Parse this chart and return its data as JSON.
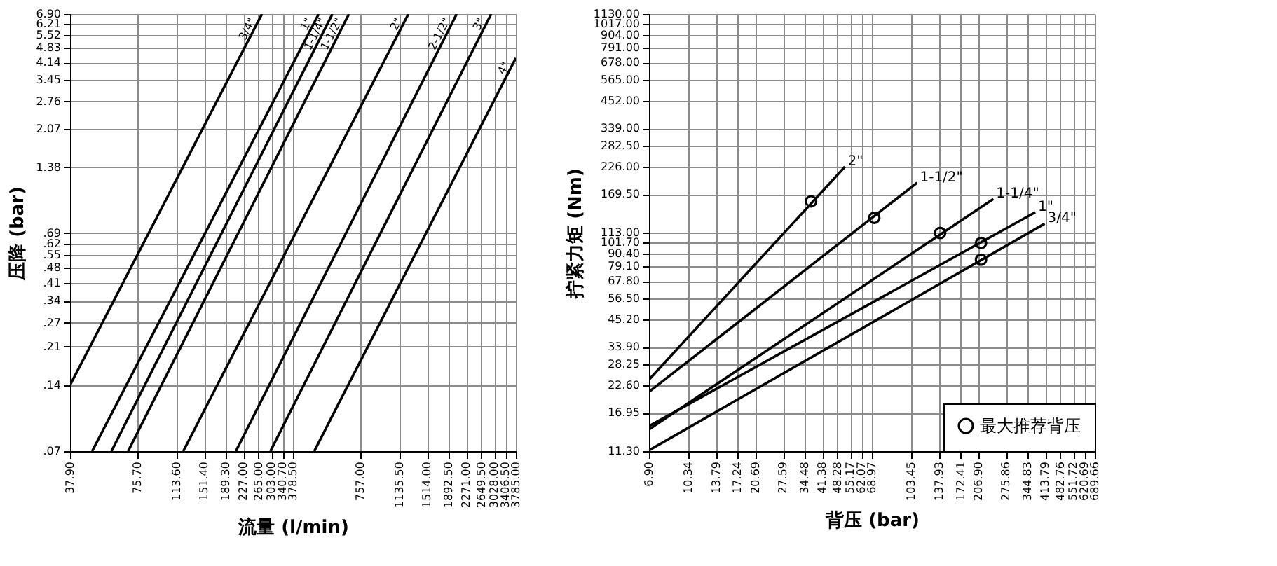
{
  "chart_data": [
    {
      "type": "line",
      "xlabel": "流量 (l/min)",
      "ylabel": "压降 (bar)",
      "log": "xy",
      "grid": true,
      "line_style": "solid",
      "xlim": [
        37.9,
        3785
      ],
      "ylim": [
        0.07,
        6.9
      ],
      "xticks": [
        {
          "value": 37.9,
          "label": "37.90"
        },
        {
          "value": 75.7,
          "label": "75.70"
        },
        {
          "value": 113.6,
          "label": "113.60"
        },
        {
          "value": 151.4,
          "label": "151.40"
        },
        {
          "value": 189.3,
          "label": "189.30"
        },
        {
          "value": 227,
          "label": "227.00"
        },
        {
          "value": 265,
          "label": "265.00"
        },
        {
          "value": 303,
          "label": "303.00"
        },
        {
          "value": 340.7,
          "label": "340.70"
        },
        {
          "value": 378.5,
          "label": "378.50"
        },
        {
          "value": 757,
          "label": "757.00"
        },
        {
          "value": 1135.5,
          "label": "1135.50"
        },
        {
          "value": 1514,
          "label": "1514.00"
        },
        {
          "value": 1892.5,
          "label": "1892.50"
        },
        {
          "value": 2271,
          "label": "2271.00"
        },
        {
          "value": 2649.5,
          "label": "2649.50"
        },
        {
          "value": 3028,
          "label": "3028.00"
        },
        {
          "value": 3406.5,
          "label": "3406.50"
        },
        {
          "value": 3785,
          "label": "3785.00"
        }
      ],
      "yticks": [
        {
          "value": 0.07,
          "label": ".07"
        },
        {
          "value": 0.14,
          "label": ".14"
        },
        {
          "value": 0.21,
          "label": ".21"
        },
        {
          "value": 0.27,
          "label": ".27"
        },
        {
          "value": 0.34,
          "label": ".34"
        },
        {
          "value": 0.41,
          "label": ".41"
        },
        {
          "value": 0.48,
          "label": ".48"
        },
        {
          "value": 0.55,
          "label": ".55"
        },
        {
          "value": 0.62,
          "label": ".62"
        },
        {
          "value": 0.69,
          "label": ".69"
        },
        {
          "value": 1.38,
          "label": "1.38"
        },
        {
          "value": 2.07,
          "label": "2.07"
        },
        {
          "value": 2.76,
          "label": "2.76"
        },
        {
          "value": 3.45,
          "label": "3.45"
        },
        {
          "value": 4.14,
          "label": "4.14"
        },
        {
          "value": 4.83,
          "label": "4.83"
        },
        {
          "value": 5.52,
          "label": "5.52"
        },
        {
          "value": 6.21,
          "label": "6.21"
        },
        {
          "value": 6.9,
          "label": "6.90"
        }
      ],
      "series": [
        {
          "name": "3/4\"",
          "color": "#000000",
          "x": [
            37.9,
            275
          ],
          "values": [
            0.14,
            6.9
          ]
        },
        {
          "name": "1\"",
          "color": "#000000",
          "x": [
            47.6,
            494
          ],
          "values": [
            0.07,
            6.9
          ]
        },
        {
          "name": "1-1/4\"",
          "color": "#000000",
          "x": [
            58.1,
            569
          ],
          "values": [
            0.07,
            6.9
          ]
        },
        {
          "name": "1-1/2\"",
          "color": "#000000",
          "x": [
            69.0,
            675
          ],
          "values": [
            0.07,
            6.9
          ]
        },
        {
          "name": "2\"",
          "color": "#000000",
          "x": [
            122,
            1247
          ],
          "values": [
            0.07,
            6.9
          ]
        },
        {
          "name": "2-1/2\"",
          "color": "#000000",
          "x": [
            210,
            2054
          ],
          "values": [
            0.07,
            6.9
          ]
        },
        {
          "name": "3\"",
          "color": "#000000",
          "x": [
            300,
            2933
          ],
          "values": [
            0.07,
            6.9
          ]
        },
        {
          "name": "4\"",
          "color": "#000000",
          "x": [
            472,
            3785
          ],
          "values": [
            0.07,
            4.35
          ]
        }
      ]
    },
    {
      "type": "line",
      "xlabel": "背压 (bar)",
      "ylabel": "拧紧力矩 (Nm)",
      "log": "xy",
      "grid": true,
      "line_style": "solid",
      "legend": "bottom right",
      "xlim": [
        6.9,
        689.66
      ],
      "ylim": [
        11.3,
        1130
      ],
      "xticks": [
        {
          "value": 6.9,
          "label": "6.90"
        },
        {
          "value": 10.34,
          "label": "10.34"
        },
        {
          "value": 13.79,
          "label": "13.79"
        },
        {
          "value": 17.24,
          "label": "17.24"
        },
        {
          "value": 20.69,
          "label": "20.69"
        },
        {
          "value": 27.59,
          "label": "27.59"
        },
        {
          "value": 34.48,
          "label": "34.48"
        },
        {
          "value": 41.38,
          "label": "41.38"
        },
        {
          "value": 48.28,
          "label": "48.28"
        },
        {
          "value": 55.17,
          "label": "55.17"
        },
        {
          "value": 62.07,
          "label": "62.07"
        },
        {
          "value": 68.97,
          "label": "68.97"
        },
        {
          "value": 103.45,
          "label": "103.45"
        },
        {
          "value": 137.93,
          "label": "137.93"
        },
        {
          "value": 172.41,
          "label": "172.41"
        },
        {
          "value": 206.9,
          "label": "206.90"
        },
        {
          "value": 275.86,
          "label": "275.86"
        },
        {
          "value": 344.83,
          "label": "344.83"
        },
        {
          "value": 413.79,
          "label": "413.79"
        },
        {
          "value": 482.76,
          "label": "482.76"
        },
        {
          "value": 551.72,
          "label": "551.72"
        },
        {
          "value": 620.69,
          "label": "620.69"
        },
        {
          "value": 689.66,
          "label": "689.66"
        }
      ],
      "yticks": [
        {
          "value": 11.3,
          "label": "11.30"
        },
        {
          "value": 16.95,
          "label": "16.95"
        },
        {
          "value": 22.6,
          "label": "22.60"
        },
        {
          "value": 28.25,
          "label": "28.25"
        },
        {
          "value": 33.9,
          "label": "33.90"
        },
        {
          "value": 45.2,
          "label": "45.20"
        },
        {
          "value": 56.5,
          "label": "56.50"
        },
        {
          "value": 67.8,
          "label": "67.80"
        },
        {
          "value": 79.1,
          "label": "79.10"
        },
        {
          "value": 90.4,
          "label": "90.40"
        },
        {
          "value": 101.7,
          "label": "101.70"
        },
        {
          "value": 113,
          "label": "113.00"
        },
        {
          "value": 169.5,
          "label": "169.50"
        },
        {
          "value": 226,
          "label": "226.00"
        },
        {
          "value": 282.5,
          "label": "282.50"
        },
        {
          "value": 339,
          "label": "339.00"
        },
        {
          "value": 452,
          "label": "452.00"
        },
        {
          "value": 565,
          "label": "565.00"
        },
        {
          "value": 678,
          "label": "678.00"
        },
        {
          "value": 791,
          "label": "791.00"
        },
        {
          "value": 904,
          "label": "904.00"
        },
        {
          "value": 1017,
          "label": "1017.00"
        },
        {
          "value": 1130,
          "label": "1130.00"
        }
      ],
      "series": [
        {
          "name": "2\"",
          "color": "#000000",
          "x": [
            6.9,
            52.2
          ],
          "values": [
            24,
            226
          ]
        },
        {
          "name": "1-1/2\"",
          "color": "#000000",
          "x": [
            6.9,
            110
          ],
          "values": [
            21.1,
            191
          ]
        },
        {
          "name": "1-1/4\"",
          "color": "#000000",
          "x": [
            6.9,
            242
          ],
          "values": [
            14.2,
            161
          ]
        },
        {
          "name": "1\"",
          "color": "#000000",
          "x": [
            6.9,
            373
          ],
          "values": [
            14.7,
            140
          ]
        },
        {
          "name": "3/4\"",
          "color": "#000000",
          "x": [
            6.9,
            411
          ],
          "values": [
            11.4,
            124
          ]
        },
        {
          "name": "最大推荐背压",
          "type": "scatter",
          "marker": "circle",
          "color": "#000000",
          "x": [
            36.8,
            70.7,
            139.6,
            213,
            213
          ],
          "values": [
            157,
            132,
            112.5,
            101.3,
            84.9
          ]
        }
      ]
    }
  ]
}
